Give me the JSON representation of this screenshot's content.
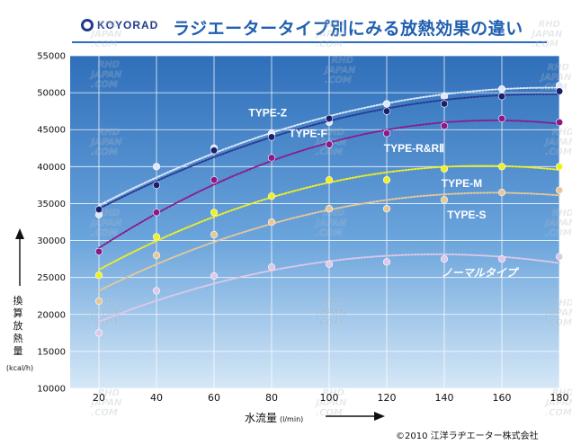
{
  "header": {
    "logo_text": "KOYORAD",
    "title": "ラジエータータイプ別にみる放熱効果の違い"
  },
  "footer": {
    "copyright": "©2010 江洋ラヂエーター株式会社"
  },
  "watermark": "RHD JAPAN .COM",
  "colors": {
    "plot_top": "#2f6fba",
    "plot_bottom": "#cfe4f6",
    "title_blue": "#1f5fb0",
    "logo_navy": "#1f3b8c"
  },
  "chart_data": {
    "type": "scatter",
    "xlabel": "水流量",
    "xunit": "(l/min)",
    "ylabel": "換算放熱量",
    "yunit": "(kcal/h)",
    "xlim": [
      10,
      180
    ],
    "ylim": [
      10000,
      55000
    ],
    "x_ticks": [
      "20",
      "40",
      "60",
      "80",
      "100",
      "120",
      "140",
      "160",
      "180"
    ],
    "y_ticks": [
      "10000",
      "15000",
      "20000",
      "25000",
      "30000",
      "35000",
      "40000",
      "45000",
      "50000",
      "55000"
    ],
    "grid": true,
    "legend": "inline labels",
    "x": [
      20,
      40,
      60,
      80,
      100,
      120,
      140,
      160,
      180
    ],
    "series": [
      {
        "name": "TYPE-Z",
        "color": "#dde8f8",
        "values": [
          33500,
          40000,
          42500,
          44500,
          46000,
          48500,
          49500,
          50500,
          51000
        ],
        "label_x": 72,
        "label_y": 47300
      },
      {
        "name": "TYPE-F",
        "color": "#1a1f6e",
        "values": [
          34200,
          37500,
          42200,
          44000,
          46500,
          47500,
          48500,
          49500,
          50200
        ],
        "label_x": 86,
        "label_y": 44500
      },
      {
        "name": "TYPE-R&RⅡ",
        "color": "#8a1a8a",
        "values": [
          28500,
          33800,
          38200,
          41200,
          43000,
          44500,
          45500,
          46500,
          46000
        ],
        "label_x": 119,
        "label_y": 42500
      },
      {
        "name": "TYPE-M",
        "color": "#f0f020",
        "values": [
          25300,
          30500,
          33800,
          36000,
          38200,
          38200,
          39700,
          40000,
          40000
        ],
        "label_x": 139,
        "label_y": 37700
      },
      {
        "name": "TYPE-S",
        "color": "#e8c896",
        "values": [
          21800,
          28000,
          30800,
          32500,
          34300,
          34300,
          35500,
          36500,
          36800
        ],
        "label_x": 141,
        "label_y": 33500
      },
      {
        "name": "ノーマルタイプ",
        "color": "#e0c8e8",
        "values": [
          17500,
          23200,
          25200,
          26400,
          26800,
          27100,
          27500,
          27500,
          27800
        ],
        "label_x": 139,
        "label_y": 25600
      }
    ]
  }
}
